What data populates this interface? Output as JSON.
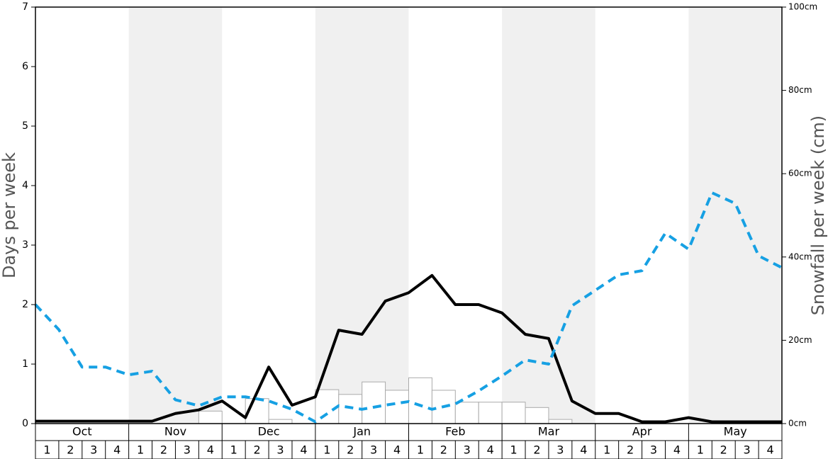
{
  "chart_data": {
    "type": "combo",
    "ylabel": "Days per week",
    "y2label": "Snowfall per week (cm)",
    "months": [
      "Oct",
      "Nov",
      "Dec",
      "Jan",
      "Feb",
      "Mar",
      "Apr",
      "May"
    ],
    "weeks": [
      "1",
      "2",
      "3",
      "4"
    ],
    "ylim": [
      0,
      7
    ],
    "yticks": [
      0,
      1,
      2,
      3,
      4,
      5,
      6,
      7
    ],
    "y2lim": [
      0,
      100
    ],
    "y2ticks": [
      {
        "value": 0,
        "label": "0cm"
      },
      {
        "value": 20,
        "label": "20cm"
      },
      {
        "value": 40,
        "label": "40cm"
      },
      {
        "value": 60,
        "label": "60cm"
      },
      {
        "value": 80,
        "label": "80cm"
      },
      {
        "value": 100,
        "label": "100cm"
      }
    ],
    "shade_color": "#f0f0f0",
    "series": [
      {
        "type": "bar",
        "color": "#ffffff",
        "stroke": "#aaaaaa",
        "values": [
          0,
          0,
          0,
          0,
          0,
          0,
          0,
          0.21,
          0,
          0.42,
          0.07,
          0,
          0.57,
          0.49,
          0.7,
          0.56,
          0.77,
          0.56,
          0.36,
          0.36,
          0.36,
          0.27,
          0.07,
          0,
          0,
          0,
          0,
          0,
          0,
          0,
          0,
          0
        ]
      },
      {
        "type": "line",
        "color": "#000000",
        "dashed": false,
        "values": [
          0.04,
          0.04,
          0.04,
          0.04,
          0.04,
          0.04,
          0.17,
          0.23,
          0.38,
          0.1,
          0.95,
          0.31,
          0.45,
          1.57,
          1.5,
          2.06,
          2.2,
          2.49,
          2.0,
          2.0,
          1.86,
          1.5,
          1.43,
          0.38,
          0.17,
          0.17,
          0.03,
          0.03,
          0.1,
          0.03,
          0.03,
          0.03,
          0.03
        ]
      },
      {
        "type": "line",
        "color": "#16a0e3",
        "dashed": true,
        "values": [
          2.0,
          1.58,
          0.95,
          0.95,
          0.82,
          0.88,
          0.4,
          0.3,
          0.45,
          0.45,
          0.38,
          0.24,
          0.03,
          0.3,
          0.24,
          0.31,
          0.37,
          0.24,
          0.33,
          0.55,
          0.8,
          1.07,
          1.0,
          1.98,
          2.24,
          2.5,
          2.57,
          3.2,
          2.93,
          3.88,
          3.7,
          2.82,
          2.62
        ]
      }
    ]
  }
}
